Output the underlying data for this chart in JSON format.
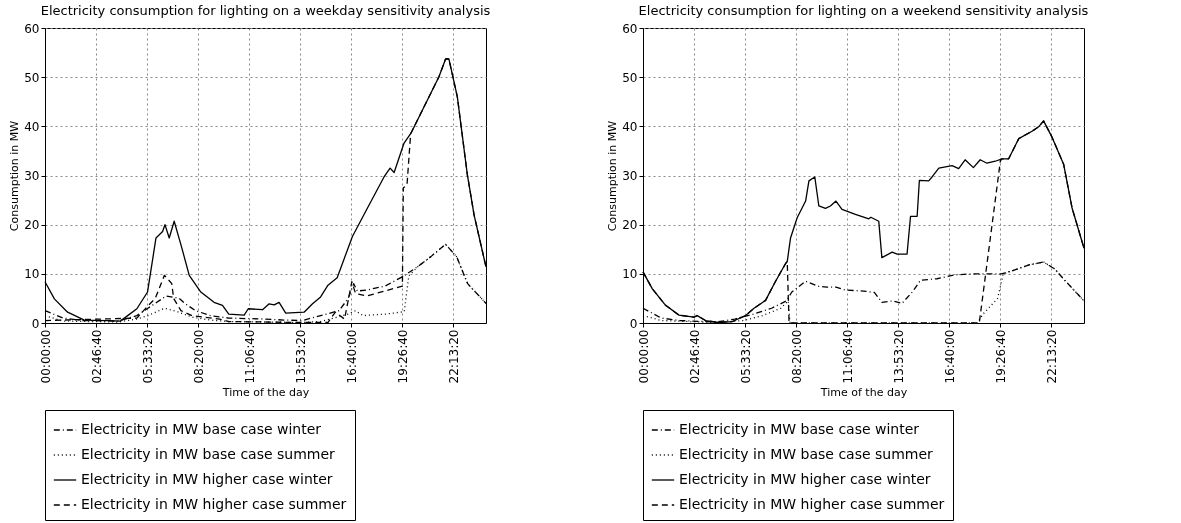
{
  "chart_data": [
    {
      "type": "line",
      "title": "Electricity consumption for lighting on a weekday sensitivity analysis",
      "xlabel": "Time of the day",
      "ylabel": "Consumption in MW",
      "xlim": [
        0,
        24
      ],
      "ylim": [
        0,
        60
      ],
      "xticks": [
        {
          "value": 0,
          "label": "00:00:00"
        },
        {
          "value": 2.7778,
          "label": "02:46:40"
        },
        {
          "value": 5.5556,
          "label": "05:33:20"
        },
        {
          "value": 8.3333,
          "label": "08:20:00"
        },
        {
          "value": 11.1111,
          "label": "11:06:40"
        },
        {
          "value": 13.8889,
          "label": "13:53:20"
        },
        {
          "value": 16.6667,
          "label": "16:40:00"
        },
        {
          "value": 19.4444,
          "label": "19:26:40"
        },
        {
          "value": 22.2222,
          "label": "22:13:20"
        }
      ],
      "yticks": [
        0,
        10,
        20,
        30,
        40,
        50,
        60
      ],
      "grid": true,
      "legend": "bottom",
      "series": [
        {
          "name": "Electricity in MW base case winter",
          "color": "#000000",
          "line_style": "dashdot",
          "x": [
            0,
            1,
            2,
            4,
            5,
            5.6,
            6.4,
            6.6,
            7.3,
            7.6,
            8.2,
            9,
            10,
            12,
            13,
            14,
            15,
            16,
            16.5,
            16.8,
            17,
            17.5,
            18.5,
            19.5,
            20.3,
            21,
            21.8,
            22.4,
            23,
            24
          ],
          "values": [
            2.5,
            1,
            0.5,
            0.4,
            1.5,
            3,
            5,
            5.5,
            5,
            4,
            2.5,
            1.5,
            1,
            0.8,
            0.6,
            0.5,
            1.5,
            2.5,
            5,
            8,
            6.5,
            6.7,
            7.5,
            9.5,
            11.5,
            13.5,
            16,
            13.5,
            8,
            4
          ]
        },
        {
          "name": "Electricity in MW base case summer",
          "color": "#000000",
          "line_style": "dotted",
          "x": [
            0,
            1,
            4,
            5,
            5.6,
            6.5,
            7.2,
            8,
            9,
            10,
            14,
            15,
            15.7,
            16.5,
            16.9,
            17.3,
            18.5,
            19.55,
            19.8,
            20.3,
            21,
            21.8,
            22.4,
            23,
            24
          ],
          "values": [
            1.5,
            0.4,
            0.2,
            0.8,
            1.5,
            3,
            2.3,
            1.2,
            0.6,
            0.3,
            0.1,
            0.3,
            1,
            1.8,
            2.5,
            1.5,
            1.8,
            2.3,
            9.6,
            11.5,
            13.5,
            16,
            13.5,
            8,
            4
          ]
        },
        {
          "name": "Electricity in MW higher case winter",
          "color": "#000000",
          "line_style": "solid",
          "x": [
            0,
            0.51,
            1.23,
            2.14,
            3.4,
            4.1,
            4.5,
            5,
            5.58,
            6.04,
            6.4,
            6.53,
            6.76,
            7.03,
            7.4,
            7.85,
            8.48,
            9.2,
            9.66,
            10,
            10.84,
            11.06,
            11.84,
            12.2,
            12.47,
            12.74,
            13.1,
            14.1,
            14.56,
            15,
            15.4,
            15.9,
            16.73,
            17.55,
            18.45,
            18.78,
            19,
            19.54,
            19.9,
            20.26,
            20.9,
            21.44,
            21.8,
            21.98,
            22.44,
            22.98,
            23.35,
            24
          ],
          "values": [
            8.4,
            4.9,
            2.2,
            0.6,
            0.5,
            0.4,
            1.5,
            2.9,
            6.3,
            17.3,
            18.6,
            20,
            17.3,
            20.7,
            15.9,
            9.7,
            6.3,
            4.2,
            3.6,
            1.8,
            1.6,
            2.9,
            2.7,
            3.9,
            3.7,
            4.2,
            2,
            2.2,
            3.9,
            5.3,
            7.7,
            9.2,
            17.6,
            23.4,
            29.7,
            31.5,
            30.6,
            36.6,
            38.5,
            41.2,
            46,
            50.1,
            53.7,
            53.7,
            46,
            30.3,
            22,
            11.4
          ]
        },
        {
          "name": "Electricity in MW higher case summer",
          "color": "#000000",
          "line_style": "dashed",
          "x": [
            0,
            5,
            5.6,
            6,
            6.5,
            6.9,
            7,
            7.4,
            8,
            9.5,
            10,
            14,
            15.4,
            15.8,
            16.3,
            16.7,
            16.9,
            17.5,
            18.5,
            19.45,
            19.5,
            19.7,
            19.9,
            20.26,
            20.9,
            21.44,
            21.8,
            21.98,
            22.44,
            22.98,
            23.35,
            24
          ],
          "values": [
            0.5,
            1,
            3.5,
            5,
            9.7,
            8,
            5,
            2.5,
            1.5,
            0.8,
            0.3,
            0.1,
            0.1,
            2.2,
            0.8,
            8.4,
            6,
            5.5,
            6.5,
            7.5,
            27.5,
            28,
            38.5,
            41.2,
            46,
            50.1,
            53.7,
            53.7,
            46,
            30.3,
            22,
            11.4
          ]
        }
      ]
    },
    {
      "type": "line",
      "title": "Electricity consumption for lighting on a weekend sensitivity analysis",
      "xlabel": "Time of the day",
      "ylabel": "Consumption in MW",
      "xlim": [
        0,
        24
      ],
      "ylim": [
        0,
        60
      ],
      "xticks": [
        {
          "value": 0,
          "label": "00:00:00"
        },
        {
          "value": 2.7778,
          "label": "02:46:40"
        },
        {
          "value": 5.5556,
          "label": "05:33:20"
        },
        {
          "value": 8.3333,
          "label": "08:20:00"
        },
        {
          "value": 11.1111,
          "label": "11:06:40"
        },
        {
          "value": 13.8889,
          "label": "13:53:20"
        },
        {
          "value": 16.6667,
          "label": "16:40:00"
        },
        {
          "value": 19.4444,
          "label": "19:26:40"
        },
        {
          "value": 22.2222,
          "label": "22:13:20"
        }
      ],
      "yticks": [
        0,
        10,
        20,
        30,
        40,
        50,
        60
      ],
      "grid": true,
      "legend": "bottom",
      "series": [
        {
          "name": "Electricity in MW base case winter",
          "color": "#000000",
          "line_style": "dashdot",
          "x": [
            0,
            1,
            2,
            4,
            5,
            6,
            7,
            7.8,
            8.1,
            8.85,
            9.5,
            10,
            10.5,
            11,
            12,
            12.6,
            13,
            13.6,
            14.1,
            14.7,
            15.1,
            16,
            17,
            18,
            19,
            19.5,
            20,
            21,
            21.8,
            22.4,
            23,
            24
          ],
          "values": [
            3,
            1,
            0.5,
            0.2,
            0.8,
            1.8,
            3,
            4.5,
            6.3,
            8.5,
            7.5,
            7.3,
            7.3,
            6.7,
            6.5,
            6.2,
            4.2,
            4.5,
            4,
            6.5,
            8.7,
            9,
            9.8,
            10,
            10,
            10,
            10.5,
            11.8,
            12.4,
            11,
            8.5,
            4.5
          ]
        },
        {
          "name": "Electricity in MW base case summer",
          "color": "#000000",
          "line_style": "dotted",
          "x": [
            0,
            1,
            4,
            5.5,
            6.5,
            7.5,
            7.9,
            8,
            18.2,
            18.5,
            19.3,
            19.45,
            19.6,
            20,
            21,
            21.8,
            22.4,
            23,
            24
          ],
          "values": [
            1.5,
            0.5,
            0.1,
            0.5,
            1.5,
            3,
            4.5,
            0,
            0,
            1.8,
            5,
            7.4,
            10,
            10.5,
            11.8,
            12.4,
            11,
            8.5,
            4.5
          ]
        },
        {
          "name": "Electricity in MW higher case winter",
          "color": "#000000",
          "line_style": "solid",
          "x": [
            0,
            0.5,
            1.23,
            1.96,
            2.77,
            2.95,
            3.4,
            4.1,
            4.86,
            5.58,
            6.04,
            6.67,
            7.2,
            7.76,
            7.85,
            8.03,
            8.39,
            8.85,
            9.03,
            9.35,
            9.57,
            9.93,
            10.2,
            10.5,
            10.83,
            11.56,
            12.29,
            12.4,
            12.83,
            13,
            13.56,
            13.83,
            14.37,
            14.56,
            14.92,
            15.04,
            15.55,
            15.73,
            16.1,
            16.82,
            17.18,
            17.53,
            17.98,
            18.35,
            18.72,
            19.17,
            19.54,
            19.9,
            20.45,
            21.17,
            21.53,
            21.8,
            22.26,
            22.89,
            23.35,
            24
          ],
          "values": [
            10.4,
            7,
            3.6,
            1.6,
            1.2,
            1.5,
            0.5,
            0.1,
            0.3,
            1.5,
            3,
            4.6,
            8.4,
            12.1,
            12.5,
            17.3,
            21.4,
            24.8,
            28.9,
            29.7,
            23.8,
            23.3,
            23.8,
            24.8,
            23.1,
            22.1,
            21.2,
            21.5,
            20.7,
            13.3,
            14.4,
            14,
            14,
            21.7,
            21.7,
            29,
            28.9,
            29.7,
            31.5,
            32,
            31.4,
            33.2,
            31.6,
            33.2,
            32.5,
            32.9,
            33.4,
            33.4,
            37.5,
            39,
            39.9,
            41.1,
            37.8,
            32.3,
            23.4,
            15.2
          ]
        },
        {
          "name": "Electricity in MW higher case summer",
          "color": "#000000",
          "line_style": "dashed",
          "x": [
            0,
            0.5,
            1.23,
            1.96,
            2.77,
            2.95,
            3.4,
            4.1,
            4.86,
            5.58,
            6.04,
            6.67,
            7.2,
            7.76,
            7.85,
            7.95,
            18.3,
            19.45,
            19.54,
            19.9,
            20.45,
            21.17,
            21.53,
            21.8,
            22.26,
            22.89,
            23.35,
            24
          ],
          "values": [
            10.4,
            7,
            3.6,
            1.6,
            1.2,
            1.5,
            0.5,
            0.1,
            0.3,
            1.5,
            3,
            4.6,
            8.4,
            12.1,
            12.5,
            0,
            0,
            33,
            33.4,
            33.4,
            37.5,
            39,
            39.9,
            41.1,
            37.8,
            32.3,
            23.4,
            15.2
          ]
        }
      ]
    }
  ]
}
